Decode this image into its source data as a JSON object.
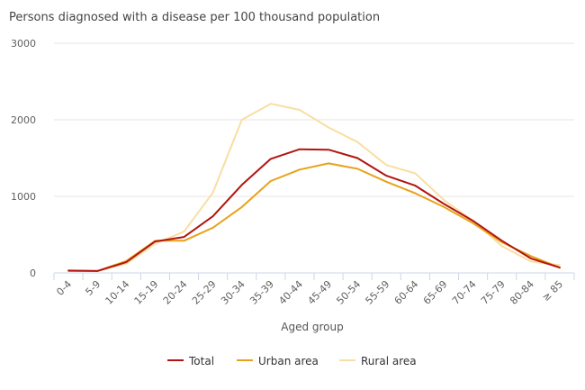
{
  "chart_data": {
    "type": "line",
    "title": "Persons diagnosed with a disease per 100 thousand population",
    "xlabel": "Aged group",
    "ylabel": "",
    "ylim": [
      0,
      3000
    ],
    "yticks": [
      "0",
      "1000",
      "2000",
      "3000"
    ],
    "grid": "horizontal",
    "legend_position": "bottom",
    "categories": [
      "0-4",
      "5-9",
      "10-14",
      "15-19",
      "20-24",
      "25-29",
      "30-34",
      "35-39",
      "40-44",
      "45-49",
      "50-54",
      "55-59",
      "60-64",
      "65-69",
      "70-74",
      "75-79",
      "80-84",
      "≥ 85"
    ],
    "series": [
      {
        "name": "Total",
        "color": "#b3140f",
        "values": [
          30,
          25,
          140,
          410,
          470,
          740,
          1150,
          1490,
          1615,
          1610,
          1500,
          1270,
          1140,
          900,
          680,
          420,
          190,
          70
        ]
      },
      {
        "name": "Urban area",
        "color": "#e8a21a",
        "values": [
          25,
          25,
          155,
          420,
          420,
          590,
          860,
          1200,
          1350,
          1430,
          1360,
          1190,
          1040,
          860,
          650,
          400,
          220,
          70
        ]
      },
      {
        "name": "Rural area",
        "color": "#f8dfa1",
        "values": [
          25,
          25,
          120,
          380,
          540,
          1050,
          2000,
          2210,
          2130,
          1900,
          1710,
          1410,
          1300,
          950,
          680,
          350,
          150,
          100
        ]
      }
    ]
  }
}
